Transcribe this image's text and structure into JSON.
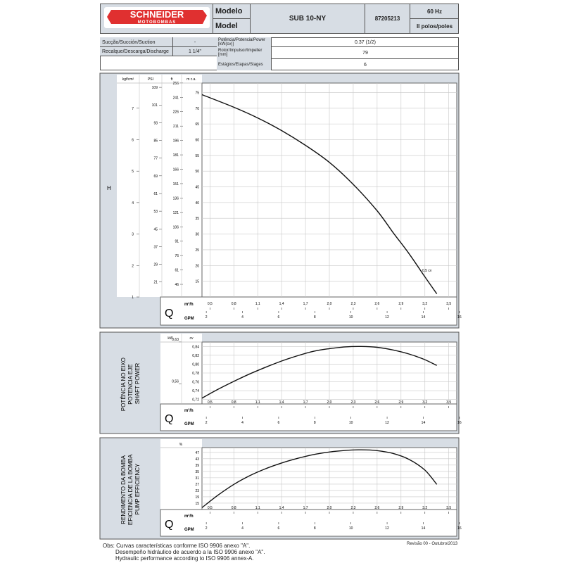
{
  "header": {
    "logo_main": "SCHNEIDER",
    "logo_sub": "MOTOBOMBAS",
    "model_label_1": "Modelo",
    "model_label_2": "Model",
    "model_value": "SUB 10-NY",
    "code": "87205213",
    "freq": "60 Hz",
    "poles": "II polos/poles"
  },
  "specs": {
    "suction_label": "Sucção/Succión/Suction",
    "suction_value": "-",
    "discharge_label": "Recalque/Descarga/Discharge",
    "discharge_value": "1 1/4\"",
    "power_label": "Potência/Potencia/Power [kW(cv)]",
    "power_value": "0.37 (1/2)",
    "impeller_label": "Rotor/Impulsor/Impeller [mm]",
    "impeller_value": "79",
    "stages_label": "Estágios/Etapas/Stages",
    "stages_value": "6"
  },
  "q_axis": {
    "letter": "Q",
    "m3h_label": "m³/h",
    "gpm_label": "GPM",
    "m3h_ticks": [
      "0,5",
      "0,8",
      "1,1",
      "1,4",
      "1,7",
      "2,0",
      "2,3",
      "2,6",
      "2,9",
      "3,2",
      "3,5"
    ],
    "gpm_ticks": [
      "2",
      "4",
      "6",
      "8",
      "10",
      "12",
      "14",
      "16"
    ]
  },
  "chart_data": [
    {
      "type": "line",
      "side_label": "H",
      "units": [
        "kgf/cm²",
        "PSI",
        "ft",
        "m c.a."
      ],
      "y_mca_ticks": [
        "75",
        "70",
        "65",
        "60",
        "55",
        "50",
        "45",
        "40",
        "35",
        "30",
        "25",
        "20",
        "15"
      ],
      "y_ft_ticks": [
        "256",
        "241",
        "226",
        "211",
        "196",
        "181",
        "166",
        "151",
        "136",
        "121",
        "106",
        "91",
        "76",
        "61",
        "46"
      ],
      "y_psi_ticks": [
        "109",
        "101",
        "93",
        "85",
        "77",
        "69",
        "61",
        "53",
        "45",
        "37",
        "29",
        "21"
      ],
      "y_kgf_ticks": [
        "7",
        "6",
        "5",
        "4",
        "3",
        "2",
        "1"
      ],
      "ylim": [
        10,
        78
      ],
      "xlim": [
        0.4,
        3.6
      ],
      "end_label": "0,5 cv",
      "series": [
        {
          "x": [
            0.4,
            0.8,
            1.1,
            1.4,
            1.7,
            2.0,
            2.3,
            2.6,
            2.8,
            3.0,
            3.2,
            3.35
          ],
          "y": [
            74.3,
            70.3,
            66.9,
            62.9,
            58.2,
            52.8,
            45.8,
            37.4,
            30.5,
            23.8,
            16.4,
            11.0
          ]
        }
      ]
    },
    {
      "type": "line",
      "side_label": [
        "POTÊNCIA NO EIXO",
        "POTENCIA EJE",
        "SHAFT POWER"
      ],
      "units": [
        "kW",
        "cv"
      ],
      "y_cv_ticks": [
        "0,84",
        "0,82",
        "0,80",
        "0,78",
        "0,76",
        "0,74",
        "0,72"
      ],
      "y_kw_ticks": [
        "0,63",
        "0,56"
      ],
      "ylim": [
        0.71,
        0.85
      ],
      "xlim": [
        0.4,
        3.6
      ],
      "series": [
        {
          "x": [
            0.4,
            0.6,
            0.8,
            1.0,
            1.2,
            1.4,
            1.6,
            1.8,
            2.0,
            2.2,
            2.4,
            2.6,
            2.8,
            3.0,
            3.2,
            3.35
          ],
          "y": [
            0.723,
            0.743,
            0.761,
            0.778,
            0.793,
            0.807,
            0.819,
            0.829,
            0.835,
            0.839,
            0.84,
            0.838,
            0.832,
            0.823,
            0.81,
            0.797
          ]
        }
      ]
    },
    {
      "type": "line",
      "side_label": [
        "RENDIMENTO DA BOMBA",
        "EFICIENCIA DE LA BOMBA",
        "PUMP EFFICIENCY"
      ],
      "units": [
        "%"
      ],
      "y_ticks": [
        "47",
        "43",
        "39",
        "35",
        "31",
        "27",
        "23",
        "19",
        "15"
      ],
      "ylim": [
        11,
        50
      ],
      "xlim": [
        0.4,
        3.6
      ],
      "series": [
        {
          "x": [
            0.4,
            0.6,
            0.8,
            1.0,
            1.2,
            1.4,
            1.6,
            1.8,
            2.0,
            2.2,
            2.4,
            2.6,
            2.8,
            3.0,
            3.2,
            3.35
          ],
          "y": [
            12.2,
            20.0,
            26.8,
            32.3,
            36.7,
            40.3,
            43.2,
            45.6,
            47.2,
            48.2,
            48.6,
            48.1,
            46.3,
            42.6,
            35.8,
            26.8
          ]
        }
      ]
    }
  ],
  "footer": {
    "obs1": "Obs: Curvas características conforme ISO 9906 anexo \"A\".",
    "obs2": "Desempeño hidráulico de acuerdo a la ISO 9906 anexo \"A\".",
    "obs3": "Hydraulic performance according to ISO 9906 annex-A.",
    "revision": "Revisão 00 - Outubro/2013"
  },
  "colors": {
    "panel": "#d7dde4",
    "logo_red": "#e03030",
    "curve": "#111111",
    "grid": "#c8c8c8"
  }
}
